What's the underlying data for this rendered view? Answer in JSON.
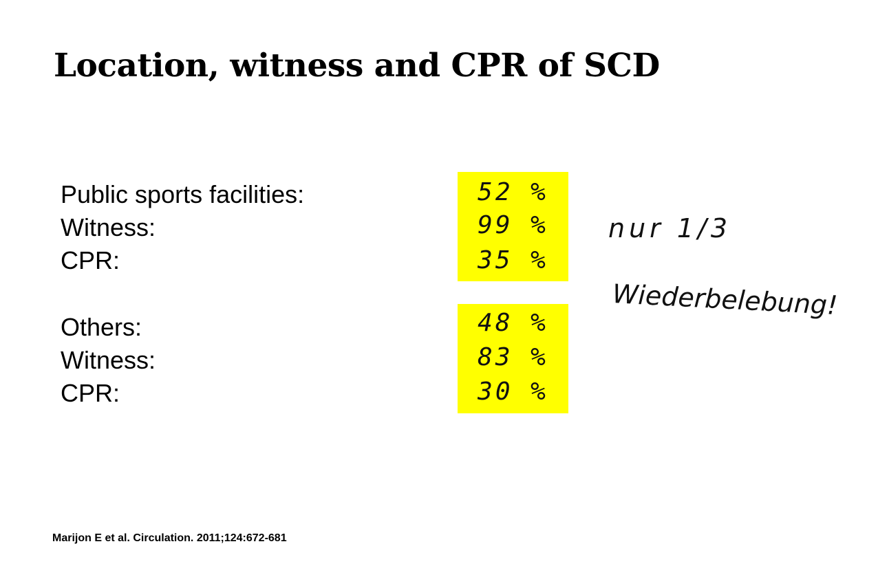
{
  "title": "Location, witness and CPR of SCD",
  "groups": [
    {
      "rows": [
        {
          "label": "Public sports facilities:",
          "value": "52 %"
        },
        {
          "label": "Witness:",
          "value": "99 %"
        },
        {
          "label": "CPR:",
          "value": "35 %"
        }
      ]
    },
    {
      "rows": [
        {
          "label": "Others:",
          "value": "48 %"
        },
        {
          "label": "Witness:",
          "value": "83 %"
        },
        {
          "label": "CPR:",
          "value": "30 %"
        }
      ]
    }
  ],
  "annotation": {
    "line1": "nur 1/3",
    "line2": "Wiederbelebung!"
  },
  "citation": "Marijon E et al. Circulation. 2011;124:672-681"
}
